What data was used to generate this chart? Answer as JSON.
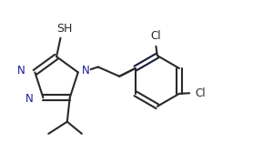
{
  "bg_color": "#ffffff",
  "line_color": "#2a2a2a",
  "bond_color_dark": "#1a1a3a",
  "label_color": "#2a2a2a",
  "N_color": "#1a1a9e",
  "line_width": 1.5,
  "font_size": 8.5,
  "SH_label": "SH",
  "N_label": "N",
  "Cl_label": "Cl",
  "figsize": [
    3.0,
    1.8
  ],
  "dpi": 100,
  "xlim": [
    0,
    10
  ],
  "ylim": [
    0,
    6
  ]
}
